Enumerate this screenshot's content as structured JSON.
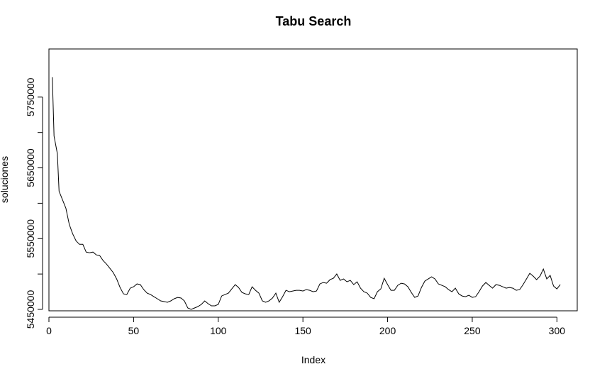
{
  "chart_data": {
    "type": "line",
    "title": "Tabu Search",
    "xlabel": "Index",
    "ylabel": "soluciones",
    "xlim": [
      0,
      312
    ],
    "ylim": [
      5448000,
      5818000
    ],
    "xticks": [
      0,
      50,
      100,
      150,
      200,
      250,
      300
    ],
    "yticks": [
      5450000,
      5550000,
      5650000,
      5750000
    ],
    "ytick_labels": [
      "5450000",
      "5550000",
      "5650000",
      "5750000"
    ],
    "grid": false,
    "legend": "none",
    "series": [
      {
        "color": "#000000",
        "points": [
          [
            2,
            5778000
          ],
          [
            3,
            5695000
          ],
          [
            5,
            5670000
          ],
          [
            6,
            5617000
          ],
          [
            8,
            5605000
          ],
          [
            10,
            5593000
          ],
          [
            12,
            5570000
          ],
          [
            14,
            5557000
          ],
          [
            16,
            5547000
          ],
          [
            18,
            5542000
          ],
          [
            20,
            5542000
          ],
          [
            22,
            5531000
          ],
          [
            24,
            5530000
          ],
          [
            26,
            5531000
          ],
          [
            28,
            5527000
          ],
          [
            30,
            5526000
          ],
          [
            32,
            5519000
          ],
          [
            34,
            5514000
          ],
          [
            36,
            5508000
          ],
          [
            38,
            5502000
          ],
          [
            40,
            5493000
          ],
          [
            42,
            5481000
          ],
          [
            44,
            5472000
          ],
          [
            46,
            5471000
          ],
          [
            48,
            5480000
          ],
          [
            50,
            5482000
          ],
          [
            52,
            5486000
          ],
          [
            54,
            5485000
          ],
          [
            56,
            5478000
          ],
          [
            58,
            5473000
          ],
          [
            60,
            5471000
          ],
          [
            62,
            5468000
          ],
          [
            64,
            5465000
          ],
          [
            66,
            5462000
          ],
          [
            68,
            5461000
          ],
          [
            70,
            5460000
          ],
          [
            72,
            5462000
          ],
          [
            74,
            5465000
          ],
          [
            76,
            5467000
          ],
          [
            78,
            5466000
          ],
          [
            80,
            5462000
          ],
          [
            82,
            5452000
          ],
          [
            84,
            5450000
          ],
          [
            86,
            5452000
          ],
          [
            88,
            5454000
          ],
          [
            90,
            5457000
          ],
          [
            92,
            5462000
          ],
          [
            94,
            5458000
          ],
          [
            96,
            5455000
          ],
          [
            98,
            5455000
          ],
          [
            100,
            5457000
          ],
          [
            102,
            5469000
          ],
          [
            104,
            5471000
          ],
          [
            106,
            5473000
          ],
          [
            108,
            5479000
          ],
          [
            110,
            5485000
          ],
          [
            112,
            5481000
          ],
          [
            114,
            5474000
          ],
          [
            116,
            5472000
          ],
          [
            118,
            5471000
          ],
          [
            120,
            5482000
          ],
          [
            122,
            5477000
          ],
          [
            124,
            5473000
          ],
          [
            126,
            5462000
          ],
          [
            128,
            5460000
          ],
          [
            130,
            5462000
          ],
          [
            132,
            5466000
          ],
          [
            134,
            5473000
          ],
          [
            136,
            5460000
          ],
          [
            138,
            5468000
          ],
          [
            140,
            5477000
          ],
          [
            142,
            5475000
          ],
          [
            144,
            5476000
          ],
          [
            146,
            5477000
          ],
          [
            148,
            5477000
          ],
          [
            150,
            5476000
          ],
          [
            152,
            5478000
          ],
          [
            154,
            5477000
          ],
          [
            156,
            5475000
          ],
          [
            158,
            5476000
          ],
          [
            160,
            5486000
          ],
          [
            162,
            5488000
          ],
          [
            164,
            5487000
          ],
          [
            166,
            5492000
          ],
          [
            168,
            5494000
          ],
          [
            170,
            5500000
          ],
          [
            172,
            5491000
          ],
          [
            174,
            5493000
          ],
          [
            176,
            5489000
          ],
          [
            178,
            5491000
          ],
          [
            180,
            5485000
          ],
          [
            182,
            5489000
          ],
          [
            184,
            5480000
          ],
          [
            186,
            5475000
          ],
          [
            188,
            5473000
          ],
          [
            190,
            5467000
          ],
          [
            192,
            5465000
          ],
          [
            194,
            5475000
          ],
          [
            196,
            5479000
          ],
          [
            198,
            5494000
          ],
          [
            200,
            5485000
          ],
          [
            202,
            5477000
          ],
          [
            204,
            5477000
          ],
          [
            206,
            5484000
          ],
          [
            208,
            5487000
          ],
          [
            210,
            5486000
          ],
          [
            212,
            5482000
          ],
          [
            214,
            5474000
          ],
          [
            216,
            5467000
          ],
          [
            218,
            5469000
          ],
          [
            220,
            5481000
          ],
          [
            222,
            5490000
          ],
          [
            224,
            5493000
          ],
          [
            226,
            5496000
          ],
          [
            228,
            5493000
          ],
          [
            230,
            5486000
          ],
          [
            232,
            5484000
          ],
          [
            234,
            5482000
          ],
          [
            236,
            5478000
          ],
          [
            238,
            5475000
          ],
          [
            240,
            5480000
          ],
          [
            242,
            5472000
          ],
          [
            244,
            5469000
          ],
          [
            246,
            5468000
          ],
          [
            248,
            5470000
          ],
          [
            250,
            5467000
          ],
          [
            252,
            5468000
          ],
          [
            254,
            5475000
          ],
          [
            256,
            5483000
          ],
          [
            258,
            5488000
          ],
          [
            260,
            5484000
          ],
          [
            262,
            5480000
          ],
          [
            264,
            5485000
          ],
          [
            266,
            5484000
          ],
          [
            268,
            5482000
          ],
          [
            270,
            5480000
          ],
          [
            272,
            5481000
          ],
          [
            274,
            5480000
          ],
          [
            276,
            5477000
          ],
          [
            278,
            5478000
          ],
          [
            280,
            5485000
          ],
          [
            282,
            5493000
          ],
          [
            284,
            5501000
          ],
          [
            286,
            5497000
          ],
          [
            288,
            5492000
          ],
          [
            290,
            5497000
          ],
          [
            292,
            5507000
          ],
          [
            294,
            5493000
          ],
          [
            296,
            5498000
          ],
          [
            298,
            5483000
          ],
          [
            300,
            5479000
          ],
          [
            302,
            5485000
          ]
        ]
      }
    ]
  }
}
